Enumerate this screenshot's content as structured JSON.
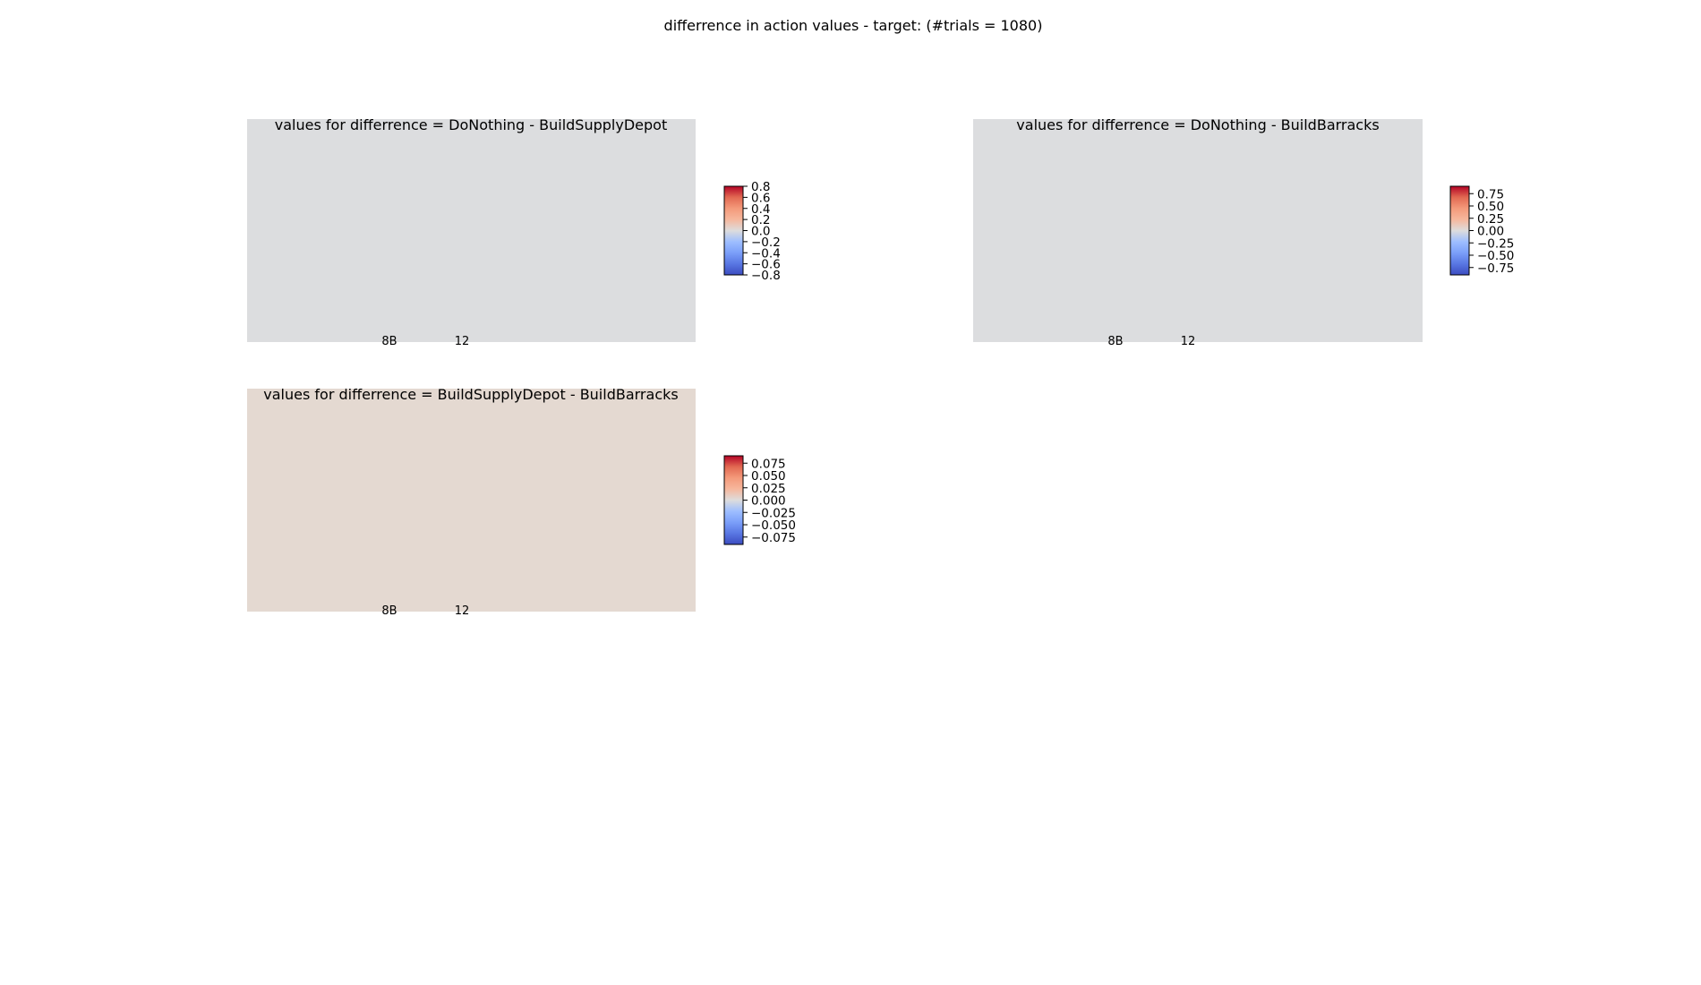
{
  "figure": {
    "title": "differrence in action values - target: (#trials = 1080)"
  },
  "chart_data": [
    {
      "type": "heatmap",
      "title": "values for differrence = DoNothing - BuildSupplyDepot",
      "cell_color": "#dcdddf",
      "xticks": [
        "8B",
        "12"
      ],
      "colorbar": {
        "range": [
          -0.8,
          0.8
        ],
        "ticks": [
          0.8,
          0.6,
          0.4,
          0.2,
          0.0,
          -0.2,
          -0.4,
          -0.6,
          -0.8
        ],
        "labels": [
          "0.8",
          "0.6",
          "0.4",
          "0.2",
          "0.0",
          "−0.2",
          "−0.4",
          "−0.6",
          "−0.8"
        ],
        "colormap": "coolwarm"
      }
    },
    {
      "type": "heatmap",
      "title": "values for differrence = DoNothing - BuildBarracks",
      "cell_color": "#dcdddf",
      "xticks": [
        "8B",
        "12"
      ],
      "colorbar": {
        "range": [
          -0.9,
          0.9
        ],
        "ticks": [
          0.75,
          0.5,
          0.25,
          0.0,
          -0.25,
          -0.5,
          -0.75
        ],
        "labels": [
          "0.75",
          "0.50",
          "0.25",
          "0.00",
          "−0.25",
          "−0.50",
          "−0.75"
        ],
        "colormap": "coolwarm"
      }
    },
    {
      "type": "heatmap",
      "title": "values for differrence = BuildSupplyDepot - BuildBarracks",
      "cell_color": "#e4d9d1",
      "xticks": [
        "8B",
        "12"
      ],
      "colorbar": {
        "range": [
          -0.09,
          0.09
        ],
        "ticks": [
          0.075,
          0.05,
          0.025,
          0.0,
          -0.025,
          -0.05,
          -0.075
        ],
        "labels": [
          "0.075",
          "0.050",
          "0.025",
          "0.000",
          "−0.025",
          "−0.050",
          "−0.075"
        ],
        "colormap": "coolwarm"
      }
    }
  ]
}
